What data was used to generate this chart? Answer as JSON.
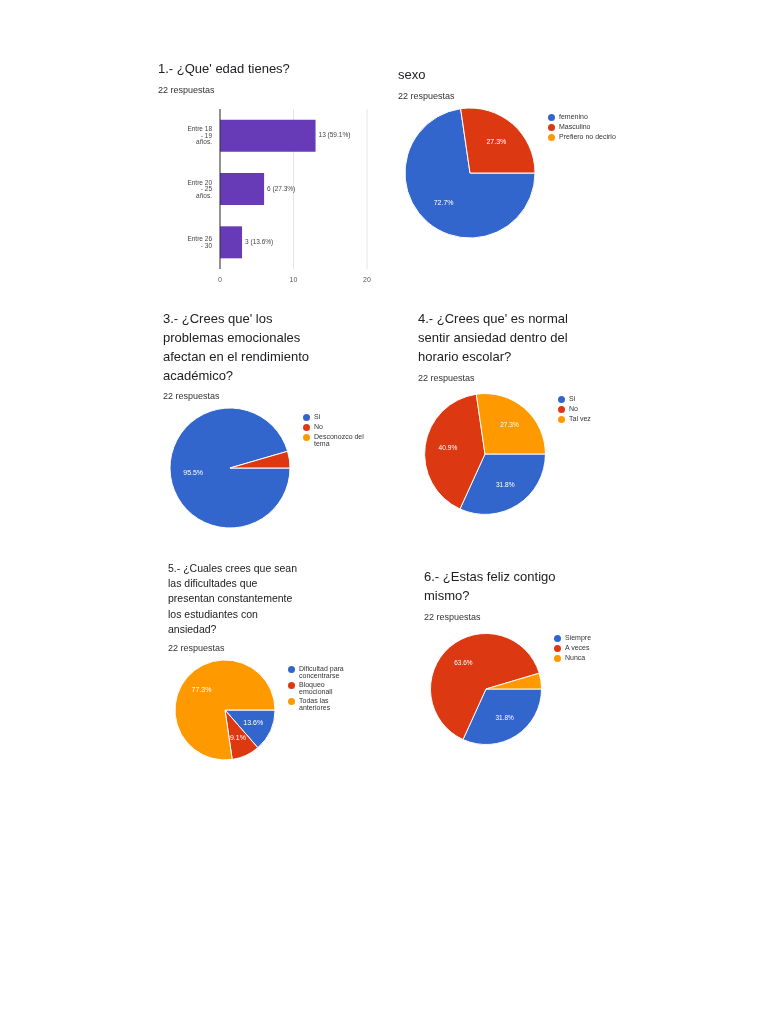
{
  "chart_data": [
    {
      "type": "bar",
      "orientation": "horizontal",
      "title": "1.- ¿Que' edad tienes?",
      "subtitle": "22 respuestas",
      "categories": [
        "Entre 18 - 19 años.",
        "Entre 20 - 25 años.",
        "Entre 26 - 30"
      ],
      "values": [
        13,
        6,
        3
      ],
      "color": "#673ab7",
      "value_labels": [
        "13 (59.1%)",
        "6 (27.3%)",
        "3 (13.6%)"
      ],
      "xlim": [
        0,
        20
      ],
      "xticks": [
        0,
        10,
        20
      ],
      "grid": "x"
    },
    {
      "type": "pie",
      "title": "sexo",
      "subtitle": "22 respuestas",
      "categories": [
        "femenino",
        "Masculino",
        "Prefiero no decirlo"
      ],
      "values": [
        72.7,
        27.3,
        0
      ],
      "colors": [
        "#3366cc",
        "#dc3912",
        "#ff9900"
      ],
      "value_labels": [
        "72.7%",
        "27.3%",
        null
      ],
      "legend": "right"
    },
    {
      "type": "pie",
      "title": "3.- ¿Crees que' los problemas emocionales afectan en el rendimiento académico?",
      "subtitle": "22 respuestas",
      "categories": [
        "Si",
        "No",
        "Desconozco del tema"
      ],
      "values": [
        95.5,
        4.5,
        0
      ],
      "colors": [
        "#3366cc",
        "#dc3912",
        "#ff9900"
      ],
      "value_labels": [
        "95.5%",
        null,
        null
      ],
      "legend": "right"
    },
    {
      "type": "pie",
      "title": "4.- ¿Crees que' es normal sentir ansiedad dentro del horario escolar?",
      "subtitle": "22 respuestas",
      "categories": [
        "Si",
        "No",
        "Tal vez"
      ],
      "values": [
        31.8,
        40.9,
        27.3
      ],
      "colors": [
        "#3366cc",
        "#dc3912",
        "#ff9900"
      ],
      "value_labels": [
        "31.8%",
        "40.9%",
        "27.3%"
      ],
      "legend": "right"
    },
    {
      "type": "pie",
      "title": "5.- ¿Cuales crees que sean las dificultades que presentan constantemente  los estudiantes con ansiedad?",
      "subtitle": "22 respuestas",
      "categories": [
        "Dificultad para concentrarse",
        "Bloqueo emocionall",
        "Todas las anteriores"
      ],
      "values": [
        13.6,
        9.1,
        77.3
      ],
      "colors": [
        "#3366cc",
        "#dc3912",
        "#ff9900"
      ],
      "value_labels": [
        "13.6%",
        "9.1%",
        "77.3%"
      ],
      "legend": "right"
    },
    {
      "type": "pie",
      "title": "6.- ¿Estas feliz contigo mismo?",
      "subtitle": "22 respuestas",
      "categories": [
        "Siempre",
        "A veces",
        "Nunca"
      ],
      "values": [
        31.8,
        63.6,
        4.6
      ],
      "colors": [
        "#3366cc",
        "#dc3912",
        "#ff9900"
      ],
      "value_labels": [
        "31.8%",
        "63.6%",
        null
      ],
      "legend": "right"
    }
  ]
}
